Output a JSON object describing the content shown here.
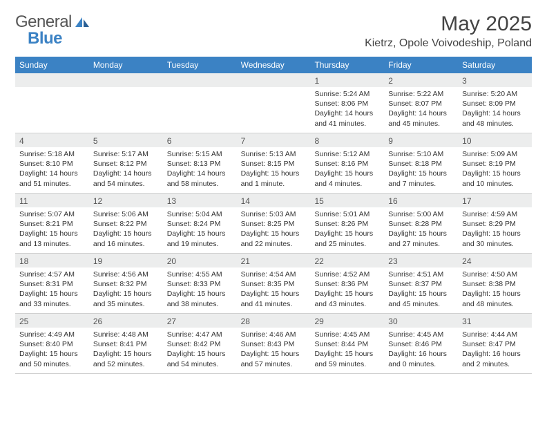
{
  "brand": {
    "name_part1": "General",
    "name_part2": "Blue"
  },
  "title": "May 2025",
  "location": "Kietrz, Opole Voivodeship, Poland",
  "colors": {
    "header_bg": "#3b82c4",
    "daynum_bg": "#eceded",
    "text": "#333333",
    "brand_gray": "#555555",
    "brand_blue": "#3b82c4"
  },
  "weekdays": [
    "Sunday",
    "Monday",
    "Tuesday",
    "Wednesday",
    "Thursday",
    "Friday",
    "Saturday"
  ],
  "weeks": [
    [
      {
        "num": "",
        "sunrise": "",
        "sunset": "",
        "daylight": ""
      },
      {
        "num": "",
        "sunrise": "",
        "sunset": "",
        "daylight": ""
      },
      {
        "num": "",
        "sunrise": "",
        "sunset": "",
        "daylight": ""
      },
      {
        "num": "",
        "sunrise": "",
        "sunset": "",
        "daylight": ""
      },
      {
        "num": "1",
        "sunrise": "Sunrise: 5:24 AM",
        "sunset": "Sunset: 8:06 PM",
        "daylight": "Daylight: 14 hours and 41 minutes."
      },
      {
        "num": "2",
        "sunrise": "Sunrise: 5:22 AM",
        "sunset": "Sunset: 8:07 PM",
        "daylight": "Daylight: 14 hours and 45 minutes."
      },
      {
        "num": "3",
        "sunrise": "Sunrise: 5:20 AM",
        "sunset": "Sunset: 8:09 PM",
        "daylight": "Daylight: 14 hours and 48 minutes."
      }
    ],
    [
      {
        "num": "4",
        "sunrise": "Sunrise: 5:18 AM",
        "sunset": "Sunset: 8:10 PM",
        "daylight": "Daylight: 14 hours and 51 minutes."
      },
      {
        "num": "5",
        "sunrise": "Sunrise: 5:17 AM",
        "sunset": "Sunset: 8:12 PM",
        "daylight": "Daylight: 14 hours and 54 minutes."
      },
      {
        "num": "6",
        "sunrise": "Sunrise: 5:15 AM",
        "sunset": "Sunset: 8:13 PM",
        "daylight": "Daylight: 14 hours and 58 minutes."
      },
      {
        "num": "7",
        "sunrise": "Sunrise: 5:13 AM",
        "sunset": "Sunset: 8:15 PM",
        "daylight": "Daylight: 15 hours and 1 minute."
      },
      {
        "num": "8",
        "sunrise": "Sunrise: 5:12 AM",
        "sunset": "Sunset: 8:16 PM",
        "daylight": "Daylight: 15 hours and 4 minutes."
      },
      {
        "num": "9",
        "sunrise": "Sunrise: 5:10 AM",
        "sunset": "Sunset: 8:18 PM",
        "daylight": "Daylight: 15 hours and 7 minutes."
      },
      {
        "num": "10",
        "sunrise": "Sunrise: 5:09 AM",
        "sunset": "Sunset: 8:19 PM",
        "daylight": "Daylight: 15 hours and 10 minutes."
      }
    ],
    [
      {
        "num": "11",
        "sunrise": "Sunrise: 5:07 AM",
        "sunset": "Sunset: 8:21 PM",
        "daylight": "Daylight: 15 hours and 13 minutes."
      },
      {
        "num": "12",
        "sunrise": "Sunrise: 5:06 AM",
        "sunset": "Sunset: 8:22 PM",
        "daylight": "Daylight: 15 hours and 16 minutes."
      },
      {
        "num": "13",
        "sunrise": "Sunrise: 5:04 AM",
        "sunset": "Sunset: 8:24 PM",
        "daylight": "Daylight: 15 hours and 19 minutes."
      },
      {
        "num": "14",
        "sunrise": "Sunrise: 5:03 AM",
        "sunset": "Sunset: 8:25 PM",
        "daylight": "Daylight: 15 hours and 22 minutes."
      },
      {
        "num": "15",
        "sunrise": "Sunrise: 5:01 AM",
        "sunset": "Sunset: 8:26 PM",
        "daylight": "Daylight: 15 hours and 25 minutes."
      },
      {
        "num": "16",
        "sunrise": "Sunrise: 5:00 AM",
        "sunset": "Sunset: 8:28 PM",
        "daylight": "Daylight: 15 hours and 27 minutes."
      },
      {
        "num": "17",
        "sunrise": "Sunrise: 4:59 AM",
        "sunset": "Sunset: 8:29 PM",
        "daylight": "Daylight: 15 hours and 30 minutes."
      }
    ],
    [
      {
        "num": "18",
        "sunrise": "Sunrise: 4:57 AM",
        "sunset": "Sunset: 8:31 PM",
        "daylight": "Daylight: 15 hours and 33 minutes."
      },
      {
        "num": "19",
        "sunrise": "Sunrise: 4:56 AM",
        "sunset": "Sunset: 8:32 PM",
        "daylight": "Daylight: 15 hours and 35 minutes."
      },
      {
        "num": "20",
        "sunrise": "Sunrise: 4:55 AM",
        "sunset": "Sunset: 8:33 PM",
        "daylight": "Daylight: 15 hours and 38 minutes."
      },
      {
        "num": "21",
        "sunrise": "Sunrise: 4:54 AM",
        "sunset": "Sunset: 8:35 PM",
        "daylight": "Daylight: 15 hours and 41 minutes."
      },
      {
        "num": "22",
        "sunrise": "Sunrise: 4:52 AM",
        "sunset": "Sunset: 8:36 PM",
        "daylight": "Daylight: 15 hours and 43 minutes."
      },
      {
        "num": "23",
        "sunrise": "Sunrise: 4:51 AM",
        "sunset": "Sunset: 8:37 PM",
        "daylight": "Daylight: 15 hours and 45 minutes."
      },
      {
        "num": "24",
        "sunrise": "Sunrise: 4:50 AM",
        "sunset": "Sunset: 8:38 PM",
        "daylight": "Daylight: 15 hours and 48 minutes."
      }
    ],
    [
      {
        "num": "25",
        "sunrise": "Sunrise: 4:49 AM",
        "sunset": "Sunset: 8:40 PM",
        "daylight": "Daylight: 15 hours and 50 minutes."
      },
      {
        "num": "26",
        "sunrise": "Sunrise: 4:48 AM",
        "sunset": "Sunset: 8:41 PM",
        "daylight": "Daylight: 15 hours and 52 minutes."
      },
      {
        "num": "27",
        "sunrise": "Sunrise: 4:47 AM",
        "sunset": "Sunset: 8:42 PM",
        "daylight": "Daylight: 15 hours and 54 minutes."
      },
      {
        "num": "28",
        "sunrise": "Sunrise: 4:46 AM",
        "sunset": "Sunset: 8:43 PM",
        "daylight": "Daylight: 15 hours and 57 minutes."
      },
      {
        "num": "29",
        "sunrise": "Sunrise: 4:45 AM",
        "sunset": "Sunset: 8:44 PM",
        "daylight": "Daylight: 15 hours and 59 minutes."
      },
      {
        "num": "30",
        "sunrise": "Sunrise: 4:45 AM",
        "sunset": "Sunset: 8:46 PM",
        "daylight": "Daylight: 16 hours and 0 minutes."
      },
      {
        "num": "31",
        "sunrise": "Sunrise: 4:44 AM",
        "sunset": "Sunset: 8:47 PM",
        "daylight": "Daylight: 16 hours and 2 minutes."
      }
    ]
  ]
}
